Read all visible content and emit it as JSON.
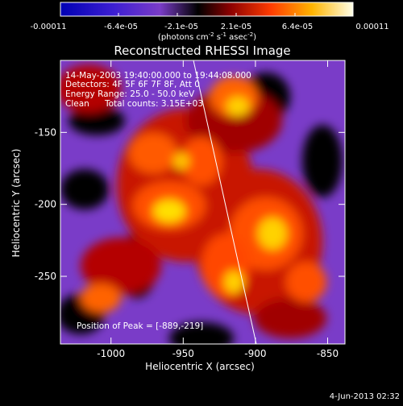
{
  "colorbar": {
    "ticks": [
      "-0.00011",
      "-6.4e-05",
      "-2.1e-05",
      "2.1e-05",
      "6.4e-05",
      "0.00011"
    ],
    "unit_main": "(photons cm",
    "unit_sup1": "-2",
    "unit_mid": " s",
    "unit_sup2": "-1",
    "unit_tail": " asec",
    "unit_sup3": "-2",
    "unit_close": ")"
  },
  "title": "Reconstructed RHESSI Image",
  "info": {
    "line1": "14-May-2003 19:40:00.000 to 19:44:08.000",
    "line2": "Detectors: 4F 5F 6F 7F 8F, Att 0",
    "line3": "Energy Range: 25.0 - 50.0 keV",
    "line4_a": "Clean",
    "line4_b": "Total counts: 3.15E+03"
  },
  "peak": "Position of Peak = [-889,-219]",
  "axes": {
    "xlabel": "Heliocentric X (arcsec)",
    "ylabel": "Heliocentric Y (arcsec)",
    "x_ticks": [
      {
        "label": "-1000",
        "value": -1000
      },
      {
        "label": "-950",
        "value": -950
      },
      {
        "label": "-900",
        "value": -900
      },
      {
        "label": "-850",
        "value": -850
      }
    ],
    "y_ticks": [
      {
        "label": "-150",
        "value": -150
      },
      {
        "label": "-200",
        "value": -200
      },
      {
        "label": "-250",
        "value": -250
      }
    ]
  },
  "footer_date": "4-Jun-2013 02:32",
  "colors": {
    "background": "#000000",
    "limb_line": "#ffffff"
  }
}
